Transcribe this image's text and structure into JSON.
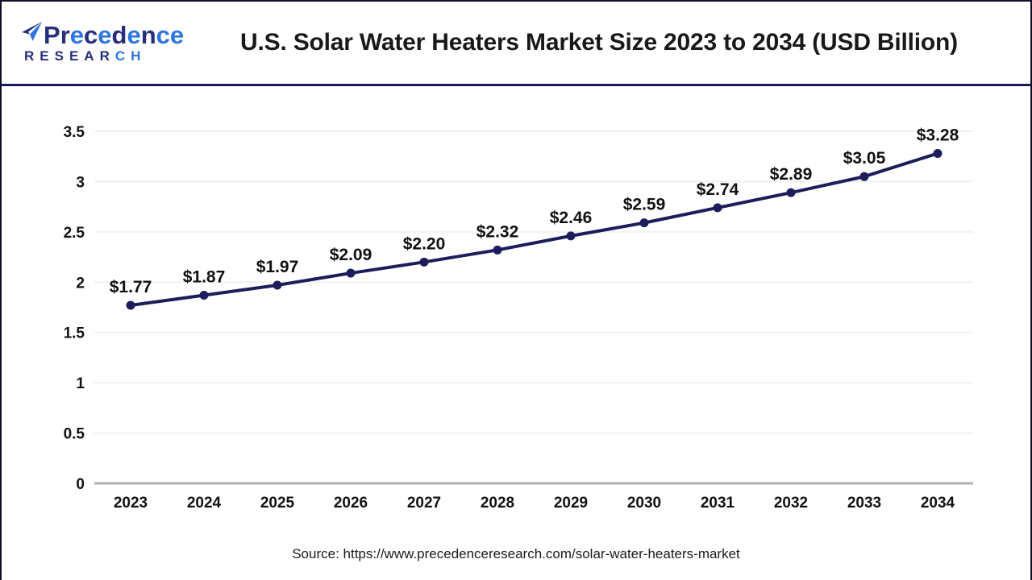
{
  "header": {
    "logo": {
      "line1_segments": [
        {
          "text": "P",
          "color": "#272e7c"
        },
        {
          "text": "r",
          "color": "#272e7c"
        },
        {
          "text": "e",
          "color": "#2e75e0"
        },
        {
          "text": "c",
          "color": "#272e7c"
        },
        {
          "text": "e",
          "color": "#2e75e0"
        },
        {
          "text": "d",
          "color": "#272e7c"
        },
        {
          "text": "e",
          "color": "#2e75e0"
        },
        {
          "text": "n",
          "color": "#272e7c"
        },
        {
          "text": "c",
          "color": "#2e75e0"
        },
        {
          "text": "e",
          "color": "#2e75e0"
        }
      ],
      "line2_segments": [
        {
          "text": "RESEAR",
          "color": "#272e7c"
        },
        {
          "text": "CH",
          "color": "#2e75e0"
        }
      ]
    },
    "title": "U.S. Solar Water Heaters Market Size 2023 to 2034 (USD Billion)"
  },
  "chart_data": {
    "type": "line",
    "title": "U.S. Solar Water Heaters Market Size 2023 to 2034 (USD Billion)",
    "xlabel": "",
    "ylabel": "",
    "categories": [
      "2023",
      "2024",
      "2025",
      "2026",
      "2027",
      "2028",
      "2029",
      "2030",
      "2031",
      "2032",
      "2033",
      "2034"
    ],
    "values": [
      1.77,
      1.87,
      1.97,
      2.09,
      2.2,
      2.32,
      2.46,
      2.59,
      2.74,
      2.89,
      3.05,
      3.28
    ],
    "point_labels": [
      "$1.77",
      "$1.87",
      "$1.97",
      "$2.09",
      "$2.20",
      "$2.32",
      "$2.46",
      "$2.59",
      "$2.74",
      "$2.89",
      "$3.05",
      "$3.28"
    ],
    "ylim": [
      0,
      3.5
    ],
    "yticks": [
      0,
      0.5,
      1,
      1.5,
      2,
      2.5,
      3,
      3.5
    ],
    "ytick_labels": [
      "0",
      "0.5",
      "1",
      "1.5",
      "2",
      "2.5",
      "3",
      "3.5"
    ],
    "grid": true,
    "legend": false,
    "line_color": "#1d1d5c",
    "marker_color": "#1d1d5c",
    "grid_color": "#f1f1f1",
    "axis_line_color": "#b0b0b0",
    "label_color": "#111111"
  },
  "footer": {
    "source": "Source: https://www.precedenceresearch.com/solar-water-heaters-market"
  }
}
